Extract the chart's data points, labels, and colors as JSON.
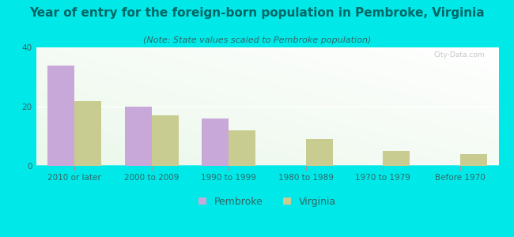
{
  "title": "Year of entry for the foreign-born population in Pembroke, Virginia",
  "subtitle": "(Note: State values scaled to Pembroke population)",
  "categories": [
    "2010 or later",
    "2000 to 2009",
    "1990 to 1999",
    "1980 to 1989",
    "1970 to 1979",
    "Before 1970"
  ],
  "pembroke_values": [
    34,
    20,
    16,
    0,
    0,
    0
  ],
  "virginia_values": [
    22,
    17,
    12,
    9,
    5,
    4
  ],
  "pembroke_color": "#c8a8d8",
  "virginia_color": "#c8cc90",
  "title_color": "#006666",
  "subtitle_color": "#336666",
  "tick_color": "#336666",
  "background_outer": "#00e8e8",
  "background_inner_topleft": "#e8f5e8",
  "background_inner_bottomright": "#f8fff8",
  "ylim": [
    0,
    40
  ],
  "yticks": [
    0,
    20,
    40
  ],
  "bar_width": 0.35,
  "title_fontsize": 11,
  "subtitle_fontsize": 8,
  "tick_fontsize": 7.5,
  "legend_fontsize": 9
}
